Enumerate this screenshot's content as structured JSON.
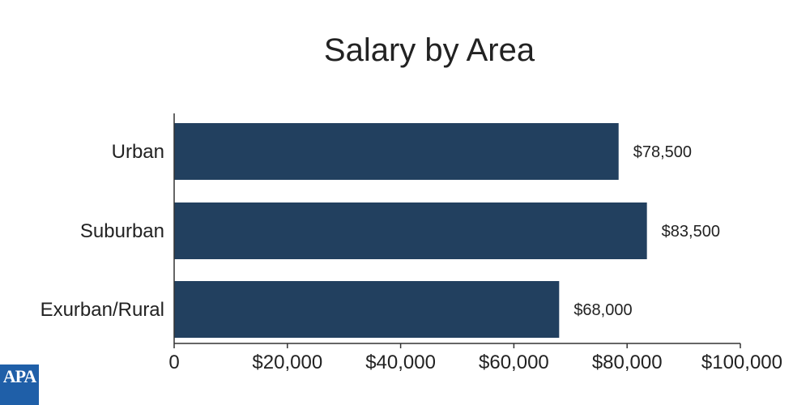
{
  "chart_data": {
    "type": "bar",
    "orientation": "horizontal",
    "title": "Salary by Area",
    "xlabel": "",
    "ylabel": "",
    "categories": [
      "Urban",
      "Suburban",
      "Exurban/Rural"
    ],
    "values": [
      78500,
      83500,
      68000
    ],
    "data_labels": [
      "$78,500",
      "$83,500",
      "$68,000"
    ],
    "xlim": [
      0,
      100000
    ],
    "x_ticks": [
      0,
      20000,
      40000,
      60000,
      80000,
      100000
    ],
    "x_tick_labels": [
      "0",
      "$20,000",
      "$40,000",
      "$60,000",
      "$80,000",
      "$100,000"
    ],
    "grid": false,
    "bar_color": "#22405f"
  },
  "logo": {
    "text": "APA",
    "color": "#1f5fa8"
  }
}
